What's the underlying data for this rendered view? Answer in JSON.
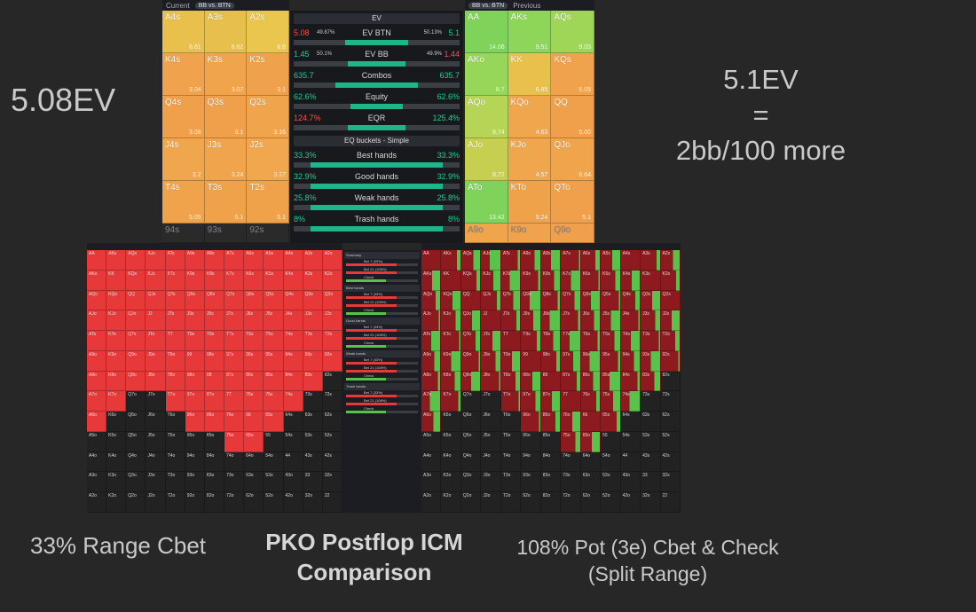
{
  "annotations": {
    "ev_left": "5.08EV",
    "ev_right_lines": [
      "5.1EV",
      "=",
      "2bb/100 more"
    ],
    "caption_left": "33% Range Cbet",
    "caption_mid": [
      "PKO Postflop ICM",
      "Comparison"
    ],
    "caption_right": [
      "108% Pot (3e) Cbet & Check",
      "(Split Range)"
    ]
  },
  "left_panel": {
    "header": {
      "label": "Current",
      "selector": "BB vs. BTN"
    },
    "rows": [
      [
        {
          "h": "A4s",
          "v": "8.61"
        },
        {
          "h": "A3s",
          "v": "8.62"
        },
        {
          "h": "A2s",
          "v": "8.6"
        }
      ],
      [
        {
          "h": "K4s",
          "v": "3.04"
        },
        {
          "h": "K3s",
          "v": "3.07"
        },
        {
          "h": "K2s",
          "v": "3.1"
        }
      ],
      [
        {
          "h": "Q4s",
          "v": "3.08"
        },
        {
          "h": "Q3s",
          "v": "3.1"
        },
        {
          "h": "Q2s",
          "v": "3.16"
        }
      ],
      [
        {
          "h": "J4s",
          "v": "3.2"
        },
        {
          "h": "J3s",
          "v": "3.24"
        },
        {
          "h": "J2s",
          "v": "3.27"
        }
      ],
      [
        {
          "h": "T4s",
          "v": "5.05"
        },
        {
          "h": "T3s",
          "v": "5.1"
        },
        {
          "h": "T2s",
          "v": "5.1"
        }
      ],
      [
        {
          "h": "94s",
          "v": ""
        },
        {
          "h": "93s",
          "v": ""
        },
        {
          "h": "92s",
          "v": ""
        }
      ]
    ],
    "colors": [
      [
        "#e9c04b",
        "#e7bf4c",
        "#ebc64f"
      ],
      [
        "#f0a24c",
        "#f0a44c",
        "#f0a14b"
      ],
      [
        "#f0a04b",
        "#f0a04b",
        "#f0a44c"
      ],
      [
        "#f0a64d",
        "#f0a54d",
        "#f0a74e"
      ],
      [
        "#f0a34b",
        "#f0a24b",
        "#f0a24b"
      ],
      [
        "#2a2a2a",
        "#2a2a2a",
        "#2a2a2a"
      ]
    ]
  },
  "right_panel": {
    "header": {
      "label": "Previous",
      "selector": "BB vs. BTN"
    },
    "rows": [
      [
        {
          "h": "AA",
          "v": "14.06"
        },
        {
          "h": "AKs",
          "v": "9.51"
        },
        {
          "h": "AQs",
          "v": "9.03"
        }
      ],
      [
        {
          "h": "AKo",
          "v": "8.7"
        },
        {
          "h": "KK",
          "v": "6.85"
        },
        {
          "h": "KQs",
          "v": "5.05"
        }
      ],
      [
        {
          "h": "AQo",
          "v": "8.74"
        },
        {
          "h": "KQo",
          "v": "4.63"
        },
        {
          "h": "QQ",
          "v": "5.00"
        }
      ],
      [
        {
          "h": "AJo",
          "v": "8.72"
        },
        {
          "h": "KJo",
          "v": "4.57"
        },
        {
          "h": "QJo",
          "v": "6.64"
        }
      ],
      [
        {
          "h": "ATo",
          "v": "13.42"
        },
        {
          "h": "KTo",
          "v": "5.24"
        },
        {
          "h": "QTo",
          "v": "5.1"
        }
      ],
      [
        {
          "h": "A9o",
          "v": ""
        },
        {
          "h": "K9o",
          "v": ""
        },
        {
          "h": "Q9o",
          "v": ""
        }
      ]
    ],
    "colors": [
      [
        "#7fd35a",
        "#8ed659",
        "#a0d657"
      ],
      [
        "#96d659",
        "#e9c04b",
        "#f0a24c"
      ],
      [
        "#b6d455",
        "#f0a64d",
        "#f0a04b"
      ],
      [
        "#c7cf50",
        "#f0a64d",
        "#f0a44c"
      ],
      [
        "#7fd35a",
        "#f0a24b",
        "#f0a04b"
      ],
      [
        "#f0a44c",
        "#f0a24c",
        "#f0a04b"
      ]
    ]
  },
  "middle_panel": {
    "dropdown": "EV",
    "stats": [
      {
        "label": "EV BTN",
        "left": "5.08",
        "left_pct": "49.87%",
        "right": "5.1",
        "right_pct": "50.13%",
        "left_color": "#ff4d4d",
        "right_color": "#26c98f",
        "fill": 0.75
      },
      {
        "label": "EV BB",
        "left": "1.45",
        "left_pct": "50.1%",
        "right": "1.44",
        "right_pct": "49.9%",
        "left_color": "#26c98f",
        "right_color": "#ff4d4d",
        "fill": 0.7
      },
      {
        "label": "Combos",
        "left": "635.7",
        "left_pct": "",
        "right": "635.7",
        "right_pct": "",
        "left_color": "#26c98f",
        "right_color": "#26c98f",
        "fill": 1.0
      },
      {
        "label": "Equity",
        "left": "62.6%",
        "left_pct": "",
        "right": "62.6%",
        "right_pct": "",
        "left_color": "#26c98f",
        "right_color": "#26c98f",
        "fill": 0.63
      },
      {
        "label": "EQR",
        "left": "124.7%",
        "left_pct": "",
        "right": "125.4%",
        "right_pct": "",
        "left_color": "#ff4d4d",
        "right_color": "#26c98f",
        "fill": 0.7
      }
    ],
    "buckets_dropdown": "EQ buckets - Simple",
    "buckets": [
      {
        "label": "Best hands",
        "left": "33.3%",
        "right": "33.3%",
        "fill": 0.33
      },
      {
        "label": "Good hands",
        "left": "32.9%",
        "right": "32.9%",
        "fill": 0.33
      },
      {
        "label": "Weak hands",
        "left": "25.8%",
        "right": "25.8%",
        "fill": 0.26
      },
      {
        "label": "Trash hands",
        "left": "8%",
        "right": "8%",
        "fill": 0.08
      }
    ]
  },
  "bottom_ranks": [
    "A",
    "K",
    "Q",
    "J",
    "T",
    "9",
    "8",
    "7",
    "6",
    "5",
    "4",
    "3",
    "2"
  ],
  "bottom_middle": {
    "sections": [
      "Summary",
      "Best hands",
      "Good hands",
      "Weak hands",
      "Trash hands"
    ],
    "lines": [
      "Bet 7 (33%)",
      "Bet 21 (108%)",
      "Check"
    ]
  },
  "palette": {
    "red": "#e8393a",
    "dark_red": "#8c1a1e",
    "green": "#58c24a",
    "empty": "#222222",
    "bg": "#272727"
  }
}
